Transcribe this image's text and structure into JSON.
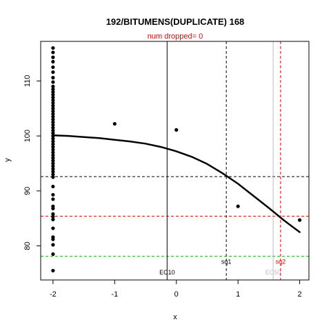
{
  "chart_data": {
    "type": "scatter",
    "title": "192/BITUMENS(DUPLICATE) 168",
    "subtitle": "num dropped= 0",
    "xlabel": "x",
    "ylabel": "y",
    "xlim": [
      -2.2,
      2.15
    ],
    "ylim": [
      73.8,
      117.2
    ],
    "x_ticks": [
      -2,
      -1,
      0,
      1,
      2
    ],
    "y_ticks": [
      80,
      90,
      100,
      110
    ],
    "grid": false,
    "colors": {
      "points": "#000000",
      "curve": "#000000",
      "hline_black": "#000000",
      "hline_red": "#dd0000",
      "hline_green": "#00aa00",
      "vline_grey": "#bbbbbb",
      "subtitle": "#dd0000"
    },
    "points": [
      {
        "x": -2,
        "y": 116.0
      },
      {
        "x": -2,
        "y": 115.2
      },
      {
        "x": -2,
        "y": 114.3
      },
      {
        "x": -2,
        "y": 113.5
      },
      {
        "x": -2,
        "y": 112.5
      },
      {
        "x": -2,
        "y": 111.6
      },
      {
        "x": -2,
        "y": 110.6
      },
      {
        "x": -2,
        "y": 109.8
      },
      {
        "x": -2,
        "y": 109.0
      },
      {
        "x": -2,
        "y": 108.5
      },
      {
        "x": -2,
        "y": 108.0
      },
      {
        "x": -2,
        "y": 107.5
      },
      {
        "x": -2,
        "y": 107.0
      },
      {
        "x": -2,
        "y": 106.5
      },
      {
        "x": -2,
        "y": 106.0
      },
      {
        "x": -2,
        "y": 105.5
      },
      {
        "x": -2,
        "y": 105.0
      },
      {
        "x": -2,
        "y": 104.5
      },
      {
        "x": -2,
        "y": 104.0
      },
      {
        "x": -2,
        "y": 103.5
      },
      {
        "x": -2,
        "y": 103.0
      },
      {
        "x": -2,
        "y": 102.5
      },
      {
        "x": -2,
        "y": 102.0
      },
      {
        "x": -2,
        "y": 101.5
      },
      {
        "x": -2,
        "y": 101.0
      },
      {
        "x": -2,
        "y": 100.5
      },
      {
        "x": -2,
        "y": 100.0
      },
      {
        "x": -2,
        "y": 99.5
      },
      {
        "x": -2,
        "y": 99.0
      },
      {
        "x": -2,
        "y": 98.5
      },
      {
        "x": -2,
        "y": 98.0
      },
      {
        "x": -2,
        "y": 97.5
      },
      {
        "x": -2,
        "y": 97.0
      },
      {
        "x": -2,
        "y": 96.5
      },
      {
        "x": -2,
        "y": 96.0
      },
      {
        "x": -2,
        "y": 95.5
      },
      {
        "x": -2,
        "y": 95.0
      },
      {
        "x": -2,
        "y": 94.5
      },
      {
        "x": -2,
        "y": 94.0
      },
      {
        "x": -2,
        "y": 93.5
      },
      {
        "x": -2,
        "y": 93.0
      },
      {
        "x": -2,
        "y": 92.5
      },
      {
        "x": -2,
        "y": 90.8
      },
      {
        "x": -2,
        "y": 89.3
      },
      {
        "x": -2,
        "y": 88.5
      },
      {
        "x": -2,
        "y": 87.2
      },
      {
        "x": -2,
        "y": 86.8
      },
      {
        "x": -2,
        "y": 85.8
      },
      {
        "x": -2,
        "y": 85.3
      },
      {
        "x": -2,
        "y": 84.8
      },
      {
        "x": -2,
        "y": 83.2
      },
      {
        "x": -2,
        "y": 81.6
      },
      {
        "x": -2,
        "y": 81.2
      },
      {
        "x": -2,
        "y": 80.2
      },
      {
        "x": -2,
        "y": 78.5
      },
      {
        "x": -2,
        "y": 75.5
      },
      {
        "x": -1,
        "y": 102.2
      },
      {
        "x": 0,
        "y": 101.1
      },
      {
        "x": 1,
        "y": 87.2
      },
      {
        "x": 2,
        "y": 84.7
      }
    ],
    "curve": {
      "x": [
        -2,
        -1.75,
        -1.5,
        -1.25,
        -1.0,
        -0.75,
        -0.5,
        -0.25,
        0.0,
        0.25,
        0.5,
        0.75,
        1.0,
        1.25,
        1.5,
        1.75,
        2.0
      ],
      "y": [
        100.1,
        100.0,
        99.8,
        99.6,
        99.3,
        99.0,
        98.6,
        98.0,
        97.2,
        96.2,
        94.9,
        93.2,
        91.3,
        89.1,
        86.9,
        84.6,
        82.5
      ]
    },
    "hlines": [
      {
        "y": 92.6,
        "style": "dashed",
        "color": "#000000"
      },
      {
        "y": 85.4,
        "style": "dashed",
        "color": "#dd0000"
      },
      {
        "y": 78.1,
        "style": "dashed",
        "color": "#00aa00"
      }
    ],
    "vlines": [
      {
        "x": -0.15,
        "style": "solid",
        "color": "#000000",
        "label": "EC10",
        "label_color": "#000000"
      },
      {
        "x": 0.81,
        "style": "dashed",
        "color": "#000000",
        "label": "sq1",
        "label_color": "#000000"
      },
      {
        "x": 1.57,
        "style": "solid",
        "color": "#bbbbbb",
        "label": "EC50",
        "label_color": "#bbbbbb"
      },
      {
        "x": 1.69,
        "style": "dashed",
        "color": "#dd0000",
        "label": "sq2",
        "label_color": "#dd0000"
      }
    ],
    "vline_labels_y": {
      "EC10": 75.2,
      "sq1": 77.1,
      "EC50": 75.2,
      "sq2": 77.1
    }
  }
}
